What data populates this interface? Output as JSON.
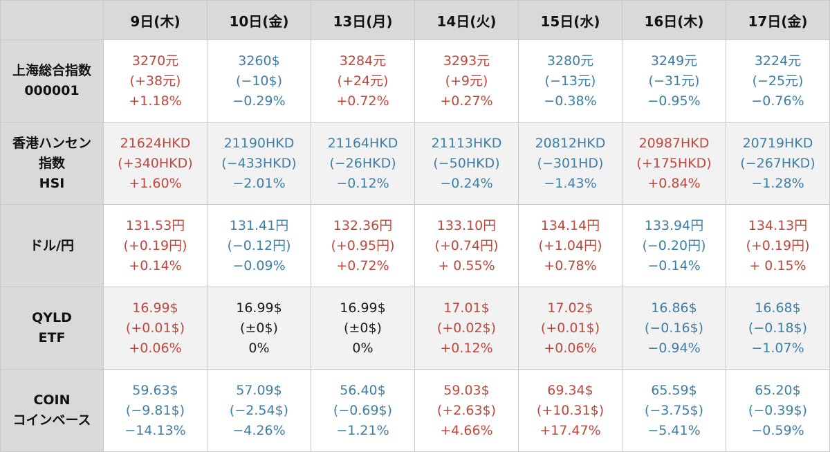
{
  "columns": [
    "9日(木)",
    "10日(金)",
    "13日(月)",
    "14日(火)",
    "15日(水)",
    "16日(木)",
    "17日(金)"
  ],
  "colors": {
    "up": "#c0473b",
    "down": "#3d7ea6",
    "flat": "#1a1a1a",
    "header_bg": "#d9d9d9"
  },
  "rows": [
    {
      "label": [
        "上海総合指数",
        "000001"
      ],
      "cells": [
        {
          "dir": "up",
          "lines": [
            "3270元",
            "(+38元)",
            "+1.18%"
          ]
        },
        {
          "dir": "down",
          "lines": [
            "3260$",
            "(−10$)",
            "−0.29%"
          ]
        },
        {
          "dir": "up",
          "lines": [
            "3284元",
            "(+24元)",
            "+0.72%"
          ]
        },
        {
          "dir": "up",
          "lines": [
            "3293元",
            "(+9元)",
            "+0.27%"
          ]
        },
        {
          "dir": "down",
          "lines": [
            "3280元",
            "(−13元)",
            "−0.38%"
          ]
        },
        {
          "dir": "down",
          "lines": [
            "3249元",
            "(−31元)",
            "−0.95%"
          ]
        },
        {
          "dir": "down",
          "lines": [
            "3224元",
            "(−25元)",
            "−0.76%"
          ]
        }
      ]
    },
    {
      "label": [
        "香港ハンセン",
        "指数",
        "HSI"
      ],
      "cells": [
        {
          "dir": "up",
          "lines": [
            "21624HKD",
            "(+340HKD)",
            "+1.60%"
          ]
        },
        {
          "dir": "down",
          "lines": [
            "21190HKD",
            "(−433HKD)",
            "−2.01%"
          ]
        },
        {
          "dir": "down",
          "lines": [
            "21164HKD",
            "(−26HKD)",
            "−0.12%"
          ]
        },
        {
          "dir": "down",
          "lines": [
            "21113HKD",
            "(−50HKD)",
            "−0.24%"
          ]
        },
        {
          "dir": "down",
          "lines": [
            "20812HKD",
            "(−301HD)",
            "−1.43%"
          ]
        },
        {
          "dir": "up",
          "lines": [
            "20987HKD",
            "(+175HKD)",
            "+0.84%"
          ]
        },
        {
          "dir": "down",
          "lines": [
            "20719HKD",
            "(−267HKD)",
            "−1.28%"
          ]
        }
      ]
    },
    {
      "label": [
        "ドル/円"
      ],
      "cells": [
        {
          "dir": "up",
          "lines": [
            "131.53円",
            "(+0.19円)",
            "+0.14%"
          ]
        },
        {
          "dir": "down",
          "lines": [
            "131.41円",
            "(−0.12円)",
            "−0.09%"
          ]
        },
        {
          "dir": "up",
          "lines": [
            "132.36円",
            "(+0.95円)",
            "+0.72%"
          ]
        },
        {
          "dir": "up",
          "lines": [
            "133.10円",
            "(+0.74円)",
            "+ 0.55%"
          ]
        },
        {
          "dir": "up",
          "lines": [
            "134.14円",
            "(+1.04円)",
            "+0.78%"
          ]
        },
        {
          "dir": "down",
          "lines": [
            "133.94円",
            "(−0.20円)",
            "−0.14%"
          ]
        },
        {
          "dir": "up",
          "lines": [
            "134.13円",
            "(+0.19円)",
            "+ 0.15%"
          ]
        }
      ]
    },
    {
      "label": [
        "QYLD",
        "ETF"
      ],
      "cells": [
        {
          "dir": "up",
          "lines": [
            "16.99$",
            "(+0.01$)",
            "+0.06%"
          ]
        },
        {
          "dir": "flat",
          "lines": [
            "16.99$",
            "(±0$)",
            "0%"
          ]
        },
        {
          "dir": "flat",
          "lines": [
            "16.99$",
            "(±0$)",
            "0%"
          ]
        },
        {
          "dir": "up",
          "lines": [
            "17.01$",
            "(+0.02$)",
            "+0.12%"
          ]
        },
        {
          "dir": "up",
          "lines": [
            "17.02$",
            "(+0.01$)",
            "+0.06%"
          ]
        },
        {
          "dir": "down",
          "lines": [
            "16.86$",
            "(−0.16$)",
            "−0.94%"
          ]
        },
        {
          "dir": "down",
          "lines": [
            "16.68$",
            "(−0.18$)",
            "−1.07%"
          ]
        }
      ]
    },
    {
      "label": [
        "COIN",
        "コインベース"
      ],
      "cells": [
        {
          "dir": "down",
          "lines": [
            "59.63$",
            "(−9.81$)",
            "−14.13%"
          ]
        },
        {
          "dir": "down",
          "lines": [
            "57.09$",
            "(−2.54$)",
            "−4.26%"
          ]
        },
        {
          "dir": "down",
          "lines": [
            "56.40$",
            "(−0.69$)",
            "−1.21%"
          ]
        },
        {
          "dir": "up",
          "lines": [
            "59.03$",
            "(+2.63$)",
            "+4.66%"
          ]
        },
        {
          "dir": "up",
          "lines": [
            "69.34$",
            "(+10.31$)",
            "+17.47%"
          ]
        },
        {
          "dir": "down",
          "lines": [
            "65.59$",
            "(−3.75$)",
            "−5.41%"
          ]
        },
        {
          "dir": "down",
          "lines": [
            "65.20$",
            "(−0.39$)",
            "−0.59%"
          ]
        }
      ]
    }
  ]
}
